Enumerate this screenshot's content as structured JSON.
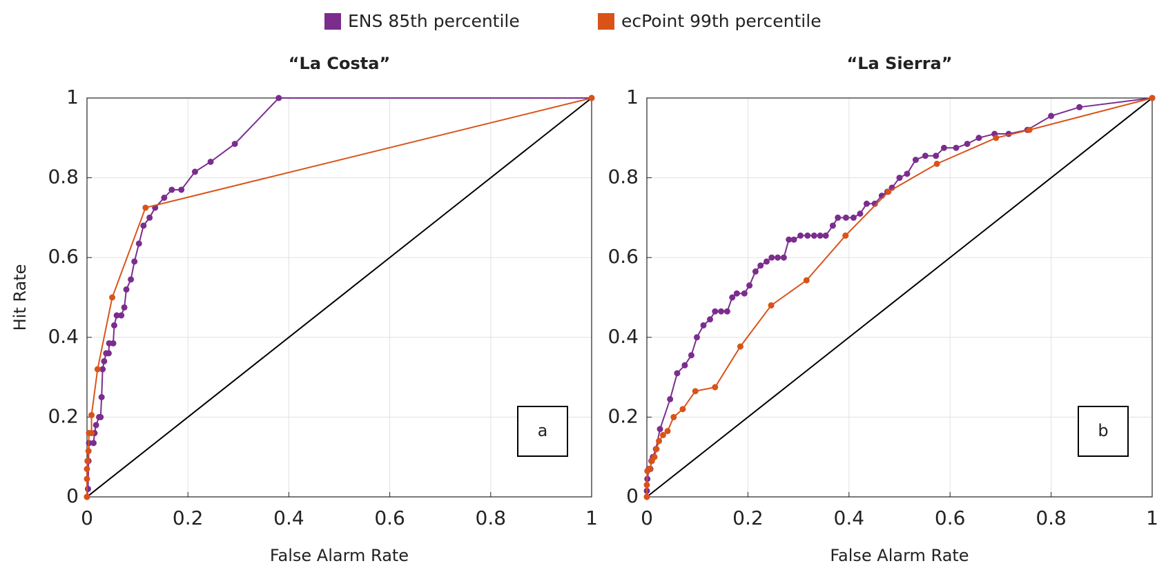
{
  "chart_data": [
    {
      "type": "line",
      "title": "“La Costa”",
      "xlabel": "False Alarm Rate",
      "ylabel": "Hit Rate",
      "annotation": "a",
      "xlim": [
        0,
        1
      ],
      "ylim": [
        0,
        1
      ],
      "xticks": [
        0,
        0.2,
        0.4,
        0.6,
        0.8,
        1
      ],
      "yticks": [
        0,
        0.2,
        0.4,
        0.6,
        0.8,
        1
      ],
      "grid": true,
      "series": [
        {
          "name": "ENS 85th percentile",
          "color": "#7b2d8e",
          "x": [
            0,
            0.002,
            0.003,
            0.004,
            0.013,
            0.015,
            0.018,
            0.024,
            0.027,
            0.029,
            0.031,
            0.034,
            0.038,
            0.043,
            0.044,
            0.052,
            0.054,
            0.059,
            0.068,
            0.074,
            0.078,
            0.087,
            0.094,
            0.103,
            0.112,
            0.124,
            0.135,
            0.153,
            0.168,
            0.187,
            0.214,
            0.245,
            0.293,
            0.38,
            1
          ],
          "values": [
            0,
            0.02,
            0.09,
            0.135,
            0.135,
            0.16,
            0.18,
            0.2,
            0.2,
            0.25,
            0.32,
            0.34,
            0.36,
            0.36,
            0.385,
            0.385,
            0.43,
            0.455,
            0.455,
            0.475,
            0.52,
            0.545,
            0.59,
            0.635,
            0.68,
            0.7,
            0.725,
            0.75,
            0.77,
            0.77,
            0.815,
            0.84,
            0.885,
            1,
            1
          ]
        },
        {
          "name": "ecPoint 99th percentile",
          "color": "#d95319",
          "x": [
            0,
            0,
            0,
            0.001,
            0.003,
            0.004,
            0.009,
            0.009,
            0.021,
            0.05,
            0.116,
            1
          ],
          "values": [
            0,
            0.045,
            0.07,
            0.09,
            0.115,
            0.16,
            0.16,
            0.205,
            0.32,
            0.5,
            0.725,
            1
          ]
        }
      ]
    },
    {
      "type": "line",
      "title": "“La Sierra”",
      "xlabel": "False Alarm Rate",
      "annotation": "b",
      "xlim": [
        0,
        1
      ],
      "ylim": [
        0,
        1
      ],
      "xticks": [
        0,
        0.2,
        0.4,
        0.6,
        0.8,
        1
      ],
      "yticks": [
        0,
        0.2,
        0.4,
        0.6,
        0.8,
        1
      ],
      "grid": true,
      "series": [
        {
          "color": "#7b2d8e",
          "x": [
            0,
            0,
            0.001,
            0.004,
            0.007,
            0.009,
            0.012,
            0.018,
            0.026,
            0.046,
            0.06,
            0.075,
            0.088,
            0.099,
            0.112,
            0.125,
            0.135,
            0.147,
            0.159,
            0.169,
            0.178,
            0.193,
            0.203,
            0.215,
            0.225,
            0.237,
            0.247,
            0.259,
            0.271,
            0.281,
            0.291,
            0.304,
            0.318,
            0.331,
            0.343,
            0.354,
            0.368,
            0.378,
            0.394,
            0.409,
            0.422,
            0.435,
            0.451,
            0.465,
            0.476,
            0.485,
            0.5,
            0.515,
            0.532,
            0.551,
            0.572,
            0.588,
            0.612,
            0.634,
            0.657,
            0.688,
            0.716,
            0.753,
            0.8,
            0.856,
            1
          ],
          "values": [
            0,
            0.015,
            0.045,
            0.07,
            0.07,
            0.09,
            0.1,
            0.12,
            0.17,
            0.245,
            0.31,
            0.33,
            0.355,
            0.4,
            0.43,
            0.445,
            0.465,
            0.465,
            0.465,
            0.5,
            0.51,
            0.51,
            0.53,
            0.565,
            0.58,
            0.59,
            0.6,
            0.6,
            0.6,
            0.645,
            0.645,
            0.655,
            0.655,
            0.655,
            0.655,
            0.655,
            0.68,
            0.7,
            0.7,
            0.7,
            0.71,
            0.735,
            0.735,
            0.755,
            0.765,
            0.775,
            0.8,
            0.81,
            0.845,
            0.855,
            0.855,
            0.875,
            0.875,
            0.885,
            0.9,
            0.91,
            0.91,
            0.92,
            0.955,
            0.977,
            1
          ]
        },
        {
          "color": "#d95319",
          "x": [
            0,
            0,
            0.001,
            0.006,
            0.01,
            0.015,
            0.019,
            0.024,
            0.032,
            0.041,
            0.053,
            0.071,
            0.096,
            0.135,
            0.185,
            0.246,
            0.316,
            0.393,
            0.478,
            0.574,
            0.691,
            0.757,
            1
          ],
          "values": [
            0,
            0.03,
            0.065,
            0.07,
            0.09,
            0.1,
            0.12,
            0.14,
            0.155,
            0.165,
            0.2,
            0.22,
            0.265,
            0.275,
            0.377,
            0.48,
            0.543,
            0.655,
            0.765,
            0.835,
            0.9,
            0.92,
            1
          ]
        }
      ]
    }
  ]
}
